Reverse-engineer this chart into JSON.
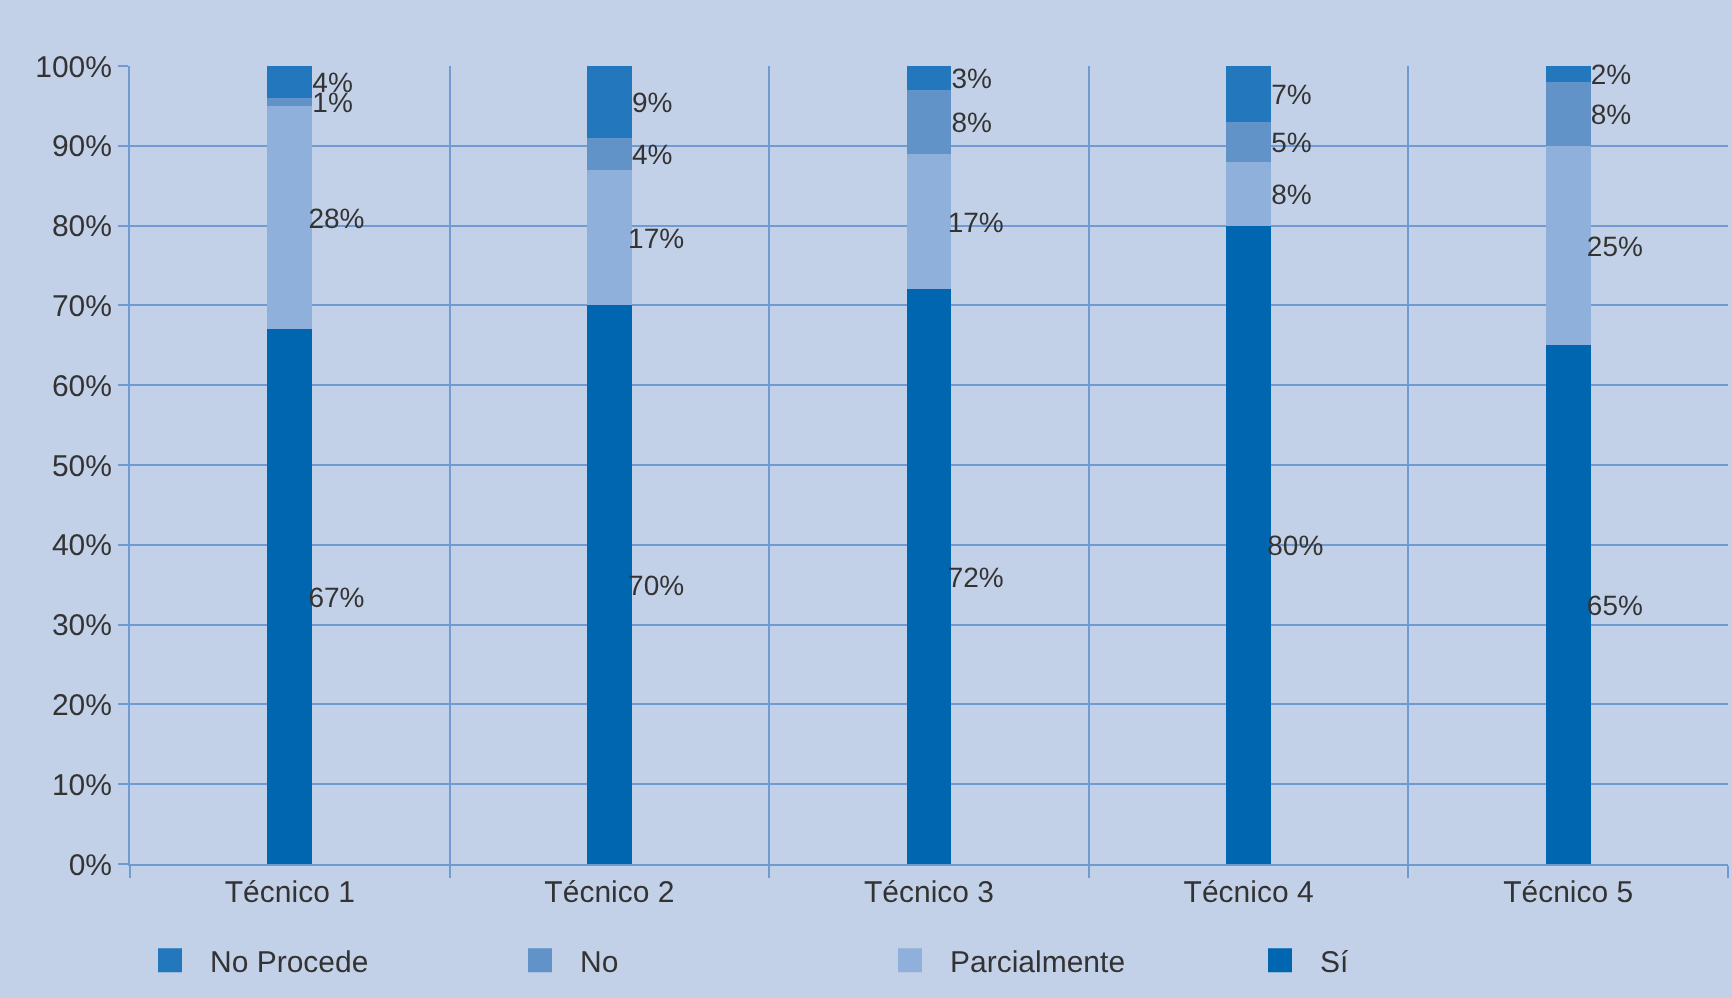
{
  "chart_data": {
    "type": "bar",
    "stacked": true,
    "categories": [
      "Técnico 1",
      "Técnico 2",
      "Técnico 3",
      "Técnico 4",
      "Técnico 5"
    ],
    "series": [
      {
        "name": "Sí",
        "color": "#0066b0",
        "values": [
          67,
          70,
          72,
          80,
          65
        ],
        "value_labels": [
          "67%",
          "70%",
          "72%",
          "80%",
          "65%"
        ]
      },
      {
        "name": "Parcialmente",
        "color": "#8fb0db",
        "values": [
          28,
          17,
          17,
          8,
          25
        ],
        "value_labels": [
          "28%",
          "17%",
          "17%",
          "8%",
          "25%"
        ]
      },
      {
        "name": "No",
        "color": "#6193c9",
        "values": [
          1,
          4,
          8,
          5,
          8
        ],
        "value_labels": [
          "1%",
          "4%",
          "8%",
          "5%",
          "8%"
        ]
      },
      {
        "name": "No Procede",
        "color": "#2277bd",
        "values": [
          4,
          9,
          3,
          7,
          2
        ],
        "value_labels": [
          "4%",
          "9%",
          "3%",
          "7%",
          "2%"
        ]
      }
    ],
    "ylim": [
      0,
      100
    ],
    "yticks": [
      {
        "value": 0,
        "label": "0%"
      },
      {
        "value": 10,
        "label": "10%"
      },
      {
        "value": 20,
        "label": "20%"
      },
      {
        "value": 30,
        "label": "30%"
      },
      {
        "value": 40,
        "label": "40%"
      },
      {
        "value": 50,
        "label": "50%"
      },
      {
        "value": 60,
        "label": "60%"
      },
      {
        "value": 70,
        "label": "70%"
      },
      {
        "value": 80,
        "label": "80%"
      },
      {
        "value": 90,
        "label": "90%"
      },
      {
        "value": 100,
        "label": "100%"
      }
    ],
    "grid": true,
    "legend": "bottom left"
  }
}
